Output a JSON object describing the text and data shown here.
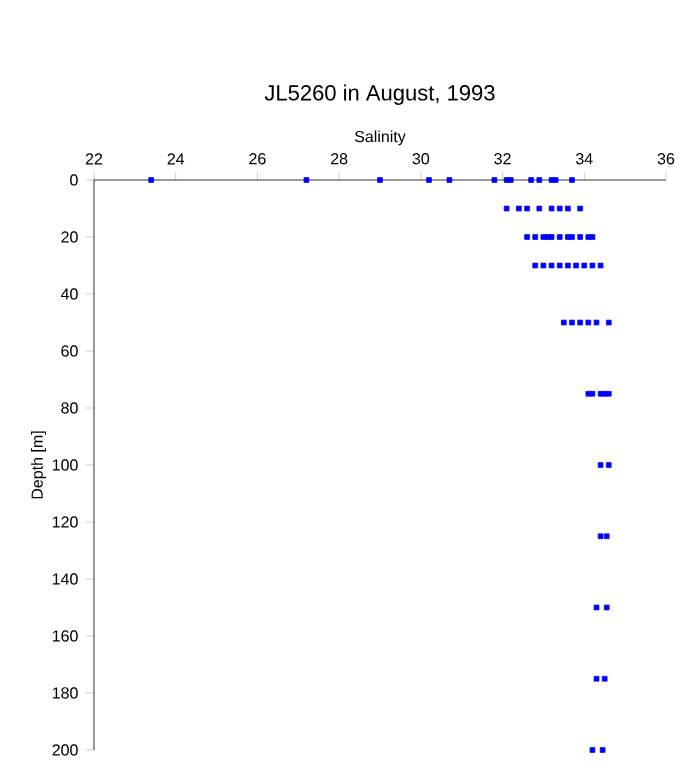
{
  "chart_data": {
    "type": "scatter",
    "title": "JL5260 in August, 1993",
    "xlabel": "Salinity",
    "ylabel": "Depth [m]",
    "xlim": [
      22,
      36
    ],
    "xticks": [
      22,
      24,
      26,
      28,
      30,
      32,
      34,
      36
    ],
    "ylim": [
      200,
      0
    ],
    "yticks": [
      0,
      20,
      40,
      60,
      80,
      100,
      120,
      140,
      160,
      180,
      200
    ],
    "marker": "square",
    "series": [
      {
        "color": "#0000ff",
        "x": [
          23.4,
          27.2,
          29.0,
          30.2,
          30.7,
          31.8,
          32.1,
          32.2,
          32.7,
          32.9,
          33.2,
          33.3,
          33.7,
          32.1,
          32.4,
          32.6,
          32.9,
          33.2,
          33.4,
          33.6,
          33.9,
          32.6,
          32.8,
          33.0,
          33.1,
          33.2,
          33.4,
          33.6,
          33.7,
          33.9,
          34.1,
          34.2,
          32.8,
          33.0,
          33.2,
          33.4,
          33.6,
          33.8,
          34.0,
          34.2,
          34.4,
          33.5,
          33.7,
          33.9,
          34.1,
          34.3,
          34.6,
          34.1,
          34.2,
          34.4,
          34.5,
          34.6,
          34.4,
          34.6,
          34.4,
          34.55,
          34.3,
          34.55,
          34.3,
          34.5,
          34.2,
          34.45
        ],
        "values": [
          0,
          0,
          0,
          0,
          0,
          0,
          0,
          0,
          0,
          0,
          0,
          0,
          0,
          10,
          10,
          10,
          10,
          10,
          10,
          10,
          10,
          20,
          20,
          20,
          20,
          20,
          20,
          20,
          20,
          20,
          20,
          20,
          30,
          30,
          30,
          30,
          30,
          30,
          30,
          30,
          30,
          50,
          50,
          50,
          50,
          50,
          50,
          75,
          75,
          75,
          75,
          75,
          100,
          100,
          125,
          125,
          150,
          150,
          175,
          175,
          200,
          200
        ]
      }
    ]
  }
}
